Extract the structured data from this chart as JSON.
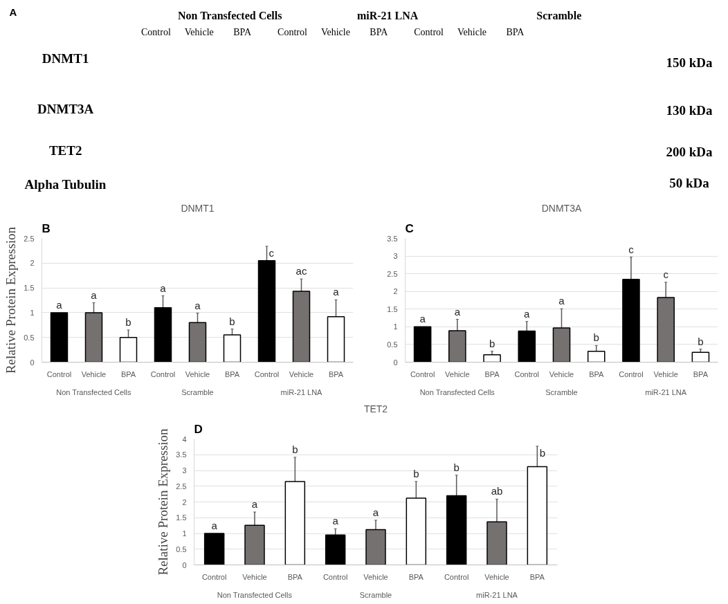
{
  "chart_data": [
    {
      "type": "other",
      "annotations": [
        "A",
        "Non Transfected Cells",
        "miR-21 LNA",
        "Scramble",
        "Control",
        "Vehicle",
        "BPA",
        "Control",
        "Vehicle",
        "BPA",
        "Control",
        "Vehicle",
        "BPA",
        "DNMT1",
        "DNMT3A",
        "TET2",
        "Alpha Tubulin",
        "150 kDa",
        "130 kDa",
        "200 kDa",
        "50 kDa"
      ]
    },
    {
      "type": "bar",
      "title": "DNMT1",
      "ylabel": "Relative Protein Expression",
      "categories": [
        "Control",
        "Vehicle",
        "BPA",
        "Control",
        "Vehicle",
        "BPA",
        "Control",
        "Vehicle",
        "BPA"
      ],
      "values": [
        1.0,
        1.0,
        0.5,
        1.1,
        0.8,
        0.55,
        2.05,
        1.43,
        0.92
      ],
      "colors": [
        "#000000",
        "#767171",
        "#ffffff",
        "#000000",
        "#767171",
        "#ffffff",
        "#000000",
        "#767171",
        "#ffffff"
      ],
      "errors": [
        null,
        0.2,
        0.15,
        0.24,
        0.19,
        0.12,
        0.29,
        0.25,
        0.34
      ],
      "value_labels": [
        "a",
        "a",
        "b",
        "a",
        "a",
        "b",
        "c",
        "ac",
        "a"
      ],
      "ylim": [
        0,
        2.5
      ],
      "yticks": [
        0,
        0.5,
        1,
        1.5,
        2,
        2.5
      ],
      "grid": "y",
      "annotations": [
        "B",
        "Non Transfected Cells",
        "Scramble",
        "miR-21 LNA"
      ]
    },
    {
      "type": "bar",
      "title": "DNMT3A",
      "categories": [
        "Control",
        "Vehicle",
        "BPA",
        "Control",
        "Vehicle",
        "BPA",
        "Control",
        "Vehicle",
        "BPA"
      ],
      "values": [
        1.0,
        0.89,
        0.21,
        0.88,
        0.97,
        0.31,
        2.34,
        1.83,
        0.28
      ],
      "colors": [
        "#000000",
        "#767171",
        "#ffffff",
        "#000000",
        "#767171",
        "#ffffff",
        "#000000",
        "#767171",
        "#ffffff"
      ],
      "errors": [
        null,
        0.32,
        0.1,
        0.27,
        0.54,
        0.16,
        0.63,
        0.43,
        0.09
      ],
      "value_labels": [
        "a",
        "a",
        "b",
        "a",
        "a",
        "b",
        "c",
        "c",
        "b"
      ],
      "ylim": [
        0,
        3.5
      ],
      "yticks": [
        0,
        0.5,
        1,
        1.5,
        2,
        2.5,
        3,
        3.5
      ],
      "grid": "y",
      "annotations": [
        "C",
        "Non Transfected Cells",
        "Scramble",
        "miR-21 LNA"
      ]
    },
    {
      "type": "bar",
      "title": "TET2",
      "ylabel": "Relative Protein Expression",
      "categories": [
        "Control",
        "Vehicle",
        "BPA",
        "Control",
        "Vehicle",
        "BPA",
        "Control",
        "Vehicle",
        "BPA"
      ],
      "values": [
        1.0,
        1.26,
        2.65,
        0.95,
        1.12,
        2.12,
        2.2,
        1.37,
        3.12
      ],
      "colors": [
        "#000000",
        "#767171",
        "#ffffff",
        "#000000",
        "#767171",
        "#ffffff",
        "#000000",
        "#767171",
        "#ffffff"
      ],
      "errors": [
        null,
        0.42,
        0.77,
        0.2,
        0.3,
        0.53,
        0.65,
        0.72,
        0.65
      ],
      "value_labels": [
        "a",
        "a",
        "b",
        "a",
        "a",
        "b",
        "b",
        "ab",
        "b"
      ],
      "ylim": [
        0,
        4
      ],
      "yticks": [
        0,
        0.5,
        1,
        1.5,
        2,
        2.5,
        3,
        3.5,
        4
      ],
      "grid": "y",
      "annotations": [
        "D",
        "Non Transfected Cells",
        "Scramble",
        "miR-21 LNA"
      ]
    }
  ]
}
